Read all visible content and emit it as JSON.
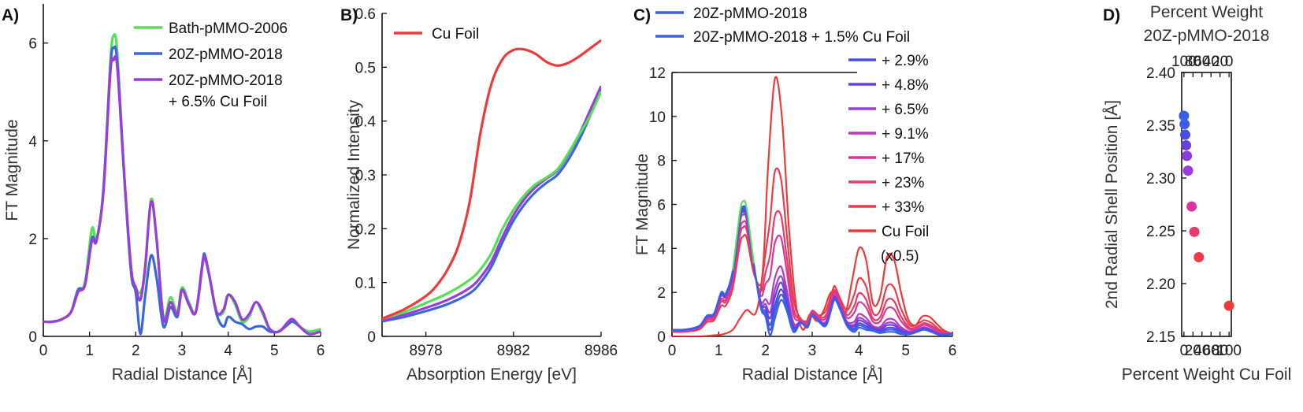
{
  "chart_data": [
    {
      "panel": "A)",
      "type": "line",
      "xlabel": "Radial Distance [Å]",
      "ylabel": "FT Magnitude",
      "xlim": [
        0,
        6
      ],
      "ylim": [
        0,
        6.8
      ],
      "xticks": [
        "0",
        "1",
        "2",
        "3",
        "4",
        "5",
        "6"
      ],
      "yticks": [
        "0",
        "2",
        "4",
        "6"
      ],
      "legend_position": "top-right",
      "series": [
        {
          "name": "Bath-pMMO-2006",
          "color": "#55e055",
          "legend_lines": [
            "Bath-pMMO-2006"
          ],
          "x": [
            0,
            0.2,
            0.4,
            0.6,
            0.75,
            0.9,
            1.05,
            1.15,
            1.3,
            1.45,
            1.52,
            1.6,
            1.75,
            1.9,
            2.0,
            2.1,
            2.2,
            2.33,
            2.45,
            2.6,
            2.75,
            2.9,
            3.0,
            3.15,
            3.3,
            3.45,
            3.5,
            3.6,
            3.75,
            3.9,
            4.0,
            4.15,
            4.3,
            4.45,
            4.6,
            4.75,
            4.9,
            5.1,
            5.3,
            5.4,
            5.55,
            5.75,
            6.0
          ],
          "y": [
            0.3,
            0.3,
            0.35,
            0.5,
            0.95,
            1.1,
            2.2,
            2.0,
            3.0,
            5.6,
            6.15,
            5.8,
            3.3,
            1.3,
            1.0,
            0.9,
            1.3,
            2.8,
            2.0,
            0.4,
            0.8,
            0.5,
            1.0,
            0.7,
            0.5,
            1.5,
            1.6,
            1.2,
            0.5,
            0.5,
            0.85,
            0.65,
            0.3,
            0.4,
            0.7,
            0.45,
            0.15,
            0.1,
            0.3,
            0.35,
            0.2,
            0.1,
            0.15
          ]
        },
        {
          "name": "20Z-pMMO-2018",
          "color": "#3b66dd",
          "legend_lines": [
            "20Z-pMMO-2018"
          ],
          "x": [
            0,
            0.2,
            0.4,
            0.6,
            0.75,
            0.9,
            1.05,
            1.15,
            1.3,
            1.45,
            1.52,
            1.6,
            1.75,
            1.9,
            2.0,
            2.1,
            2.2,
            2.33,
            2.45,
            2.6,
            2.75,
            2.9,
            3.0,
            3.15,
            3.3,
            3.45,
            3.5,
            3.6,
            3.75,
            3.9,
            4.0,
            4.15,
            4.3,
            4.45,
            4.6,
            4.75,
            4.9,
            5.1,
            5.3,
            5.4,
            5.55,
            5.75,
            6.0
          ],
          "y": [
            0.3,
            0.3,
            0.35,
            0.5,
            0.95,
            1.05,
            2.0,
            1.95,
            3.0,
            5.5,
            5.9,
            5.6,
            3.3,
            1.3,
            0.9,
            0.05,
            0.8,
            1.65,
            1.2,
            0.2,
            0.6,
            0.4,
            0.95,
            0.65,
            0.5,
            1.55,
            1.65,
            1.2,
            0.45,
            0.2,
            0.4,
            0.3,
            0.25,
            0.15,
            0.2,
            0.2,
            0.1,
            0.1,
            0.25,
            0.3,
            0.2,
            0.05,
            0.1
          ]
        },
        {
          "name": "20Z-pMMO-2018 + 6.5% Cu Foil",
          "color": "#9a3dd9",
          "legend_lines": [
            "20Z-pMMO-2018",
            "+ 6.5% Cu Foil"
          ],
          "x": [
            0,
            0.2,
            0.4,
            0.6,
            0.75,
            0.9,
            1.05,
            1.15,
            1.3,
            1.45,
            1.52,
            1.6,
            1.75,
            1.9,
            2.0,
            2.1,
            2.2,
            2.33,
            2.45,
            2.6,
            2.75,
            2.9,
            3.0,
            3.15,
            3.3,
            3.45,
            3.5,
            3.6,
            3.75,
            3.9,
            4.0,
            4.15,
            4.3,
            4.45,
            4.6,
            4.75,
            4.9,
            5.1,
            5.3,
            5.4,
            5.55,
            5.75,
            6.0
          ],
          "y": [
            0.3,
            0.3,
            0.35,
            0.5,
            0.9,
            1.05,
            1.95,
            1.95,
            2.95,
            5.4,
            5.65,
            5.5,
            3.3,
            1.4,
            1.0,
            0.75,
            1.4,
            2.75,
            2.0,
            0.35,
            0.7,
            0.45,
            0.95,
            0.65,
            0.5,
            1.5,
            1.6,
            1.2,
            0.5,
            0.55,
            0.85,
            0.7,
            0.35,
            0.45,
            0.7,
            0.5,
            0.15,
            0.1,
            0.3,
            0.35,
            0.2,
            0.05,
            0.1
          ]
        }
      ]
    },
    {
      "panel": "B)",
      "type": "line",
      "xlabel": "Absorption Energy [eV]",
      "ylabel": "Normalized Intensity",
      "xlim": [
        8976,
        8986
      ],
      "ylim": [
        0,
        0.6
      ],
      "xticks": [
        "8978",
        "8982",
        "8986"
      ],
      "yticks": [
        "0",
        "0.1",
        "0.2",
        "0.3",
        "0.4",
        "0.5",
        "0.6"
      ],
      "legend_position": "top-left",
      "series": [
        {
          "name": "Cu Foil",
          "color": "#ee3a3a",
          "legend_lines": [
            "Cu Foil"
          ],
          "x": [
            8976,
            8977,
            8978,
            8978.5,
            8979,
            8979.5,
            8980,
            8980.5,
            8981,
            8981.5,
            8982,
            8982.5,
            8983,
            8983.5,
            8984,
            8984.5,
            8985,
            8985.5,
            8986
          ],
          "y": [
            0.033,
            0.05,
            0.075,
            0.095,
            0.125,
            0.17,
            0.25,
            0.38,
            0.47,
            0.515,
            0.532,
            0.533,
            0.525,
            0.51,
            0.503,
            0.508,
            0.52,
            0.535,
            0.55
          ]
        },
        {
          "name": "",
          "color": "#55e055",
          "legend_lines": [],
          "x": [
            8976,
            8977,
            8978,
            8979,
            8980,
            8980.5,
            8981,
            8981.5,
            8982,
            8982.5,
            8983,
            8983.5,
            8984,
            8984.5,
            8985,
            8985.5,
            8986
          ],
          "y": [
            0.033,
            0.045,
            0.062,
            0.08,
            0.105,
            0.125,
            0.155,
            0.2,
            0.235,
            0.262,
            0.282,
            0.295,
            0.31,
            0.34,
            0.375,
            0.41,
            0.455
          ]
        },
        {
          "name": "",
          "color": "#9a3dd9",
          "legend_lines": [],
          "x": [
            8976,
            8977,
            8978,
            8979,
            8980,
            8980.5,
            8981,
            8981.5,
            8982,
            8982.5,
            8983,
            8983.5,
            8984,
            8984.5,
            8985,
            8985.5,
            8986
          ],
          "y": [
            0.03,
            0.04,
            0.053,
            0.068,
            0.09,
            0.11,
            0.14,
            0.185,
            0.225,
            0.255,
            0.277,
            0.293,
            0.308,
            0.338,
            0.375,
            0.42,
            0.465
          ]
        },
        {
          "name": "",
          "color": "#3b66dd",
          "legend_lines": [],
          "x": [
            8976,
            8977,
            8978,
            8979,
            8980,
            8980.5,
            8981,
            8981.5,
            8982,
            8982.5,
            8983,
            8983.5,
            8984,
            8984.5,
            8985,
            8985.5,
            8986
          ],
          "y": [
            0.028,
            0.036,
            0.047,
            0.06,
            0.08,
            0.1,
            0.13,
            0.175,
            0.215,
            0.245,
            0.268,
            0.285,
            0.3,
            0.328,
            0.365,
            0.41,
            0.46
          ]
        }
      ]
    },
    {
      "panel": "C)",
      "type": "line",
      "xlabel": "Radial Distance [Å]",
      "ylabel": "FT Magnitude",
      "xlim": [
        0,
        6
      ],
      "ylim": [
        0,
        12
      ],
      "xticks": [
        "0",
        "1",
        "2",
        "3",
        "4",
        "5",
        "6"
      ],
      "yticks": [
        "0",
        "2",
        "4",
        "6",
        "8",
        "10",
        "12"
      ],
      "legend_position": "top-right",
      "legend": [
        {
          "text": "20Z-pMMO-2018",
          "color": "#3b5fe6",
          "row": "top"
        },
        {
          "text": "20Z-pMMO-2018 + 1.5% Cu Foil",
          "color": "#3b5fe6",
          "row": "top"
        },
        {
          "text": "+ 2.9%",
          "color": "#4a4de0",
          "row": "side"
        },
        {
          "text": "+ 4.8%",
          "color": "#6a3fdb",
          "row": "side"
        },
        {
          "text": "+ 6.5%",
          "color": "#9a3dd9",
          "row": "side"
        },
        {
          "text": "+ 9.1%",
          "color": "#b93ac0",
          "row": "side"
        },
        {
          "text": "+ 17%",
          "color": "#d9379a",
          "row": "side"
        },
        {
          "text": "+ 23%",
          "color": "#e83a6d",
          "row": "side"
        },
        {
          "text": "+ 33%",
          "color": "#ee3a4a",
          "row": "side"
        },
        {
          "text": "Cu Foil",
          "color": "#ee3a3a",
          "row": "side"
        },
        {
          "text": "(x0.5)",
          "color": "",
          "row": "side"
        }
      ],
      "fractions": [
        0,
        0.015,
        0.029,
        0.048,
        0.065,
        0.091,
        0.17,
        0.23,
        0.33,
        1.0
      ],
      "colors": [
        "#3b5fe6",
        "#3b5fe6",
        "#4a4de0",
        "#6a3fdb",
        "#9a3dd9",
        "#b93ac0",
        "#d9379a",
        "#e83a6d",
        "#ee3a4a",
        "#ee3a3a"
      ],
      "base_x": [
        0,
        0.2,
        0.4,
        0.6,
        0.75,
        0.9,
        1.05,
        1.15,
        1.3,
        1.45,
        1.52,
        1.6,
        1.75,
        1.9,
        2.0,
        2.1,
        2.2,
        2.33,
        2.45,
        2.6,
        2.75,
        2.9,
        3.0,
        3.15,
        3.3,
        3.45,
        3.5,
        3.6,
        3.75,
        3.9,
        4.0,
        4.15,
        4.3,
        4.45,
        4.6,
        4.75,
        4.9,
        5.1,
        5.3,
        5.4,
        5.55,
        5.75,
        6.0
      ],
      "base_y": [
        0.3,
        0.3,
        0.35,
        0.5,
        0.95,
        1.05,
        2.0,
        1.95,
        3.0,
        5.5,
        5.9,
        5.6,
        3.3,
        1.3,
        0.9,
        0.05,
        0.8,
        1.65,
        1.2,
        0.2,
        0.6,
        0.4,
        0.95,
        0.65,
        0.5,
        1.55,
        1.65,
        1.2,
        0.45,
        0.2,
        0.4,
        0.3,
        0.25,
        0.15,
        0.2,
        0.2,
        0.1,
        0.1,
        0.25,
        0.3,
        0.2,
        0.05,
        0.1
      ],
      "cu_x": [
        0,
        0.3,
        0.6,
        0.9,
        1.1,
        1.3,
        1.45,
        1.6,
        1.8,
        1.95,
        2.05,
        2.2,
        2.35,
        2.5,
        2.65,
        2.8,
        2.95,
        3.1,
        3.25,
        3.4,
        3.55,
        3.7,
        3.85,
        4.0,
        4.15,
        4.3,
        4.45,
        4.6,
        4.75,
        4.9,
        5.05,
        5.2,
        5.35,
        5.5,
        5.65,
        5.8,
        6.0
      ],
      "cu_y": [
        0.0,
        0.0,
        0.0,
        0.05,
        0.1,
        0.3,
        0.8,
        1.2,
        1.1,
        3.2,
        7.5,
        11.7,
        10.0,
        5.0,
        1.5,
        0.3,
        1.0,
        0.7,
        1.2,
        2.0,
        1.8,
        1.0,
        2.5,
        4.0,
        3.5,
        1.5,
        1.8,
        3.6,
        3.5,
        2.0,
        0.8,
        0.5,
        0.9,
        0.9,
        0.6,
        0.3,
        0.1
      ],
      "series": [
        {
          "name": "20Z-pMMO-2018"
        },
        {
          "name": "20Z-pMMO-2018 + 1.5% Cu Foil"
        },
        {
          "name": "+ 2.9%"
        },
        {
          "name": "+ 4.8%"
        },
        {
          "name": "+ 6.5%"
        },
        {
          "name": "+ 9.1%"
        },
        {
          "name": "+ 17%"
        },
        {
          "name": "+ 23%"
        },
        {
          "name": "+ 33%"
        },
        {
          "name": "Cu Foil (x0.5)"
        }
      ]
    },
    {
      "panel": "D)",
      "type": "scatter",
      "title_lines": [
        "Percent Weight",
        "20Z-pMMO-2018"
      ],
      "xlabel": "Percent Weight Cu Foil",
      "ylabel": "2nd Radial Shell Position [Å]",
      "xlim": [
        -5,
        105
      ],
      "ylim": [
        2.15,
        2.4
      ],
      "xticks": [
        "0",
        "20",
        "40",
        "60",
        "80",
        "100"
      ],
      "top_xticks": [
        "100",
        "80",
        "60",
        "40",
        "20",
        "0"
      ],
      "yticks": [
        "2.15",
        "2.20",
        "2.25",
        "2.30",
        "2.35",
        "2.40"
      ],
      "points": [
        {
          "x": 0,
          "y": 2.359,
          "color": "#3b5fe6"
        },
        {
          "x": 1.5,
          "y": 2.351,
          "color": "#3b5fe6"
        },
        {
          "x": 2.9,
          "y": 2.341,
          "color": "#4a4de0"
        },
        {
          "x": 4.8,
          "y": 2.331,
          "color": "#6a3fdb"
        },
        {
          "x": 6.5,
          "y": 2.321,
          "color": "#8a3dd9"
        },
        {
          "x": 9.1,
          "y": 2.307,
          "color": "#9a3dd9"
        },
        {
          "x": 17,
          "y": 2.273,
          "color": "#d9379a"
        },
        {
          "x": 23,
          "y": 2.249,
          "color": "#e83a6d"
        },
        {
          "x": 33,
          "y": 2.225,
          "color": "#ee3a4a"
        },
        {
          "x": 100,
          "y": 2.179,
          "color": "#ee3a3a"
        }
      ]
    }
  ]
}
